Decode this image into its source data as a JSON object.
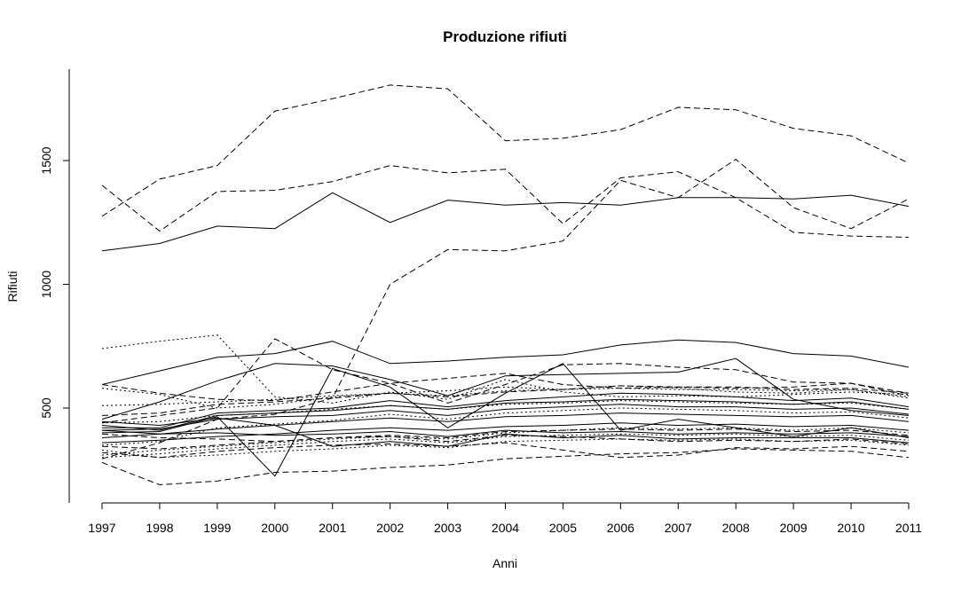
{
  "chart_data": {
    "type": "line",
    "title": "Produzione rifiuti",
    "xlabel": "Anni",
    "ylabel": "Rifiuti",
    "x": [
      1997,
      1998,
      1999,
      2000,
      2001,
      2002,
      2003,
      2004,
      2005,
      2006,
      2007,
      2008,
      2009,
      2010,
      2011
    ],
    "x_ticks": [
      "1997",
      "1998",
      "1999",
      "2000",
      "2001",
      "2002",
      "2003",
      "2004",
      "2005",
      "2006",
      "2007",
      "2008",
      "2009",
      "2010",
      "2011"
    ],
    "y_ticks": [
      "500",
      "1000",
      "1500"
    ],
    "y_tick_values": [
      500,
      1000,
      1500
    ],
    "xlim": [
      1997,
      2011
    ],
    "ylim": [
      180,
      1810
    ],
    "grid": false,
    "legend": "none",
    "line_color": "#000000",
    "series": [
      {
        "style": "dashed",
        "values": [
          1275,
          1425,
          1480,
          1700,
          1750,
          1805,
          1790,
          1580,
          1590,
          1625,
          1715,
          1705,
          1630,
          1600,
          1490
        ]
      },
      {
        "style": "dashed",
        "values": [
          1400,
          1215,
          1375,
          1380,
          1415,
          1480,
          1450,
          1465,
          1245,
          1430,
          1455,
          1350,
          1210,
          1195,
          1190
        ]
      },
      {
        "style": "solid",
        "values": [
          1135,
          1165,
          1235,
          1225,
          1370,
          1250,
          1340,
          1320,
          1330,
          1320,
          1350,
          1350,
          1345,
          1360,
          1315
        ]
      },
      {
        "style": "dashed",
        "values": [
          295,
          360,
          455,
          475,
          540,
          1000,
          1140,
          1135,
          1175,
          1420,
          1350,
          1505,
          1310,
          1225,
          1345
        ]
      },
      {
        "style": "dotted",
        "values": [
          740,
          770,
          795,
          545,
          520,
          565,
          535,
          615,
          565,
          545,
          550,
          545,
          555,
          565,
          555
        ]
      },
      {
        "style": "solid",
        "values": [
          595,
          650,
          705,
          720,
          770,
          680,
          690,
          705,
          715,
          755,
          775,
          765,
          720,
          710,
          665
        ]
      },
      {
        "style": "solid",
        "values": [
          455,
          525,
          610,
          680,
          670,
          615,
          550,
          630,
          635,
          640,
          645,
          700,
          535,
          490,
          470
        ]
      },
      {
        "style": "dashed",
        "values": [
          440,
          470,
          500,
          780,
          655,
          600,
          520,
          595,
          675,
          680,
          665,
          655,
          605,
          600,
          560
        ]
      },
      {
        "style": "dashed",
        "values": [
          595,
          560,
          535,
          530,
          565,
          600,
          620,
          640,
          595,
          580,
          585,
          580,
          585,
          600,
          550
        ]
      },
      {
        "style": "solid",
        "values": [
          420,
          420,
          480,
          490,
          500,
          530,
          505,
          530,
          545,
          560,
          555,
          545,
          530,
          540,
          505
        ]
      },
      {
        "style": "solid",
        "values": [
          410,
          415,
          455,
          465,
          470,
          490,
          470,
          495,
          505,
          515,
          505,
          505,
          495,
          500,
          475
        ]
      },
      {
        "style": "solid",
        "values": [
          400,
          405,
          465,
          225,
          660,
          585,
          420,
          560,
          680,
          410,
          455,
          420,
          385,
          420,
          380
        ]
      },
      {
        "style": "solid",
        "values": [
          430,
          410,
          470,
          480,
          490,
          510,
          495,
          520,
          525,
          535,
          530,
          525,
          515,
          525,
          495
        ]
      },
      {
        "style": "dotted",
        "values": [
          580,
          555,
          500,
          515,
          545,
          560,
          570,
          585,
          575,
          590,
          580,
          565,
          560,
          575,
          540
        ]
      },
      {
        "style": "dotted",
        "values": [
          350,
          365,
          420,
          435,
          450,
          475,
          455,
          480,
          490,
          500,
          495,
          490,
          480,
          485,
          460
        ]
      },
      {
        "style": "solid",
        "values": [
          445,
          430,
          460,
          430,
          345,
          365,
          345,
          395,
          380,
          390,
          375,
          380,
          380,
          380,
          360
        ]
      },
      {
        "style": "solid",
        "values": [
          410,
          395,
          400,
          390,
          395,
          405,
          385,
          410,
          400,
          405,
          395,
          400,
          395,
          400,
          385
        ]
      },
      {
        "style": "dashed",
        "values": [
          395,
          380,
          375,
          365,
          380,
          385,
          365,
          390,
          385,
          375,
          365,
          370,
          365,
          375,
          355
        ]
      },
      {
        "style": "dotted",
        "values": [
          310,
          330,
          345,
          360,
          375,
          385,
          375,
          400,
          410,
          420,
          415,
          420,
          410,
          420,
          400
        ]
      },
      {
        "style": "dashed",
        "values": [
          280,
          190,
          205,
          240,
          245,
          260,
          270,
          295,
          305,
          315,
          320,
          335,
          330,
          325,
          300
        ]
      },
      {
        "style": "dotted",
        "values": [
          330,
          300,
          310,
          325,
          335,
          350,
          340,
          365,
          370,
          375,
          370,
          375,
          365,
          370,
          350
        ]
      },
      {
        "style": "dashed",
        "values": [
          345,
          335,
          350,
          365,
          380,
          390,
          380,
          405,
          410,
          415,
          410,
          415,
          405,
          410,
          390
        ]
      },
      {
        "style": "solid",
        "values": [
          380,
          395,
          415,
          430,
          445,
          460,
          445,
          465,
          470,
          480,
          475,
          470,
          465,
          470,
          445
        ]
      },
      {
        "style": "dotted",
        "values": [
          300,
          315,
          335,
          350,
          365,
          375,
          360,
          385,
          390,
          395,
          390,
          395,
          385,
          390,
          370
        ]
      },
      {
        "style": "dashed",
        "values": [
          470,
          480,
          515,
          525,
          540,
          560,
          545,
          565,
          575,
          590,
          585,
          585,
          575,
          580,
          560
        ]
      },
      {
        "style": "dotted",
        "values": [
          510,
          515,
          525,
          535,
          550,
          560,
          550,
          570,
          575,
          580,
          575,
          575,
          570,
          575,
          545
        ]
      },
      {
        "style": "solid",
        "values": [
          360,
          370,
          385,
          395,
          410,
          420,
          410,
          425,
          430,
          440,
          430,
          435,
          425,
          430,
          410
        ]
      },
      {
        "style": "dashed",
        "values": [
          320,
          300,
          325,
          340,
          350,
          355,
          345,
          360,
          330,
          300,
          310,
          340,
          335,
          345,
          325
        ]
      },
      {
        "style": "dotted",
        "values": [
          440,
          445,
          470,
          480,
          495,
          510,
          495,
          515,
          520,
          530,
          525,
          520,
          515,
          520,
          495
        ]
      }
    ]
  }
}
